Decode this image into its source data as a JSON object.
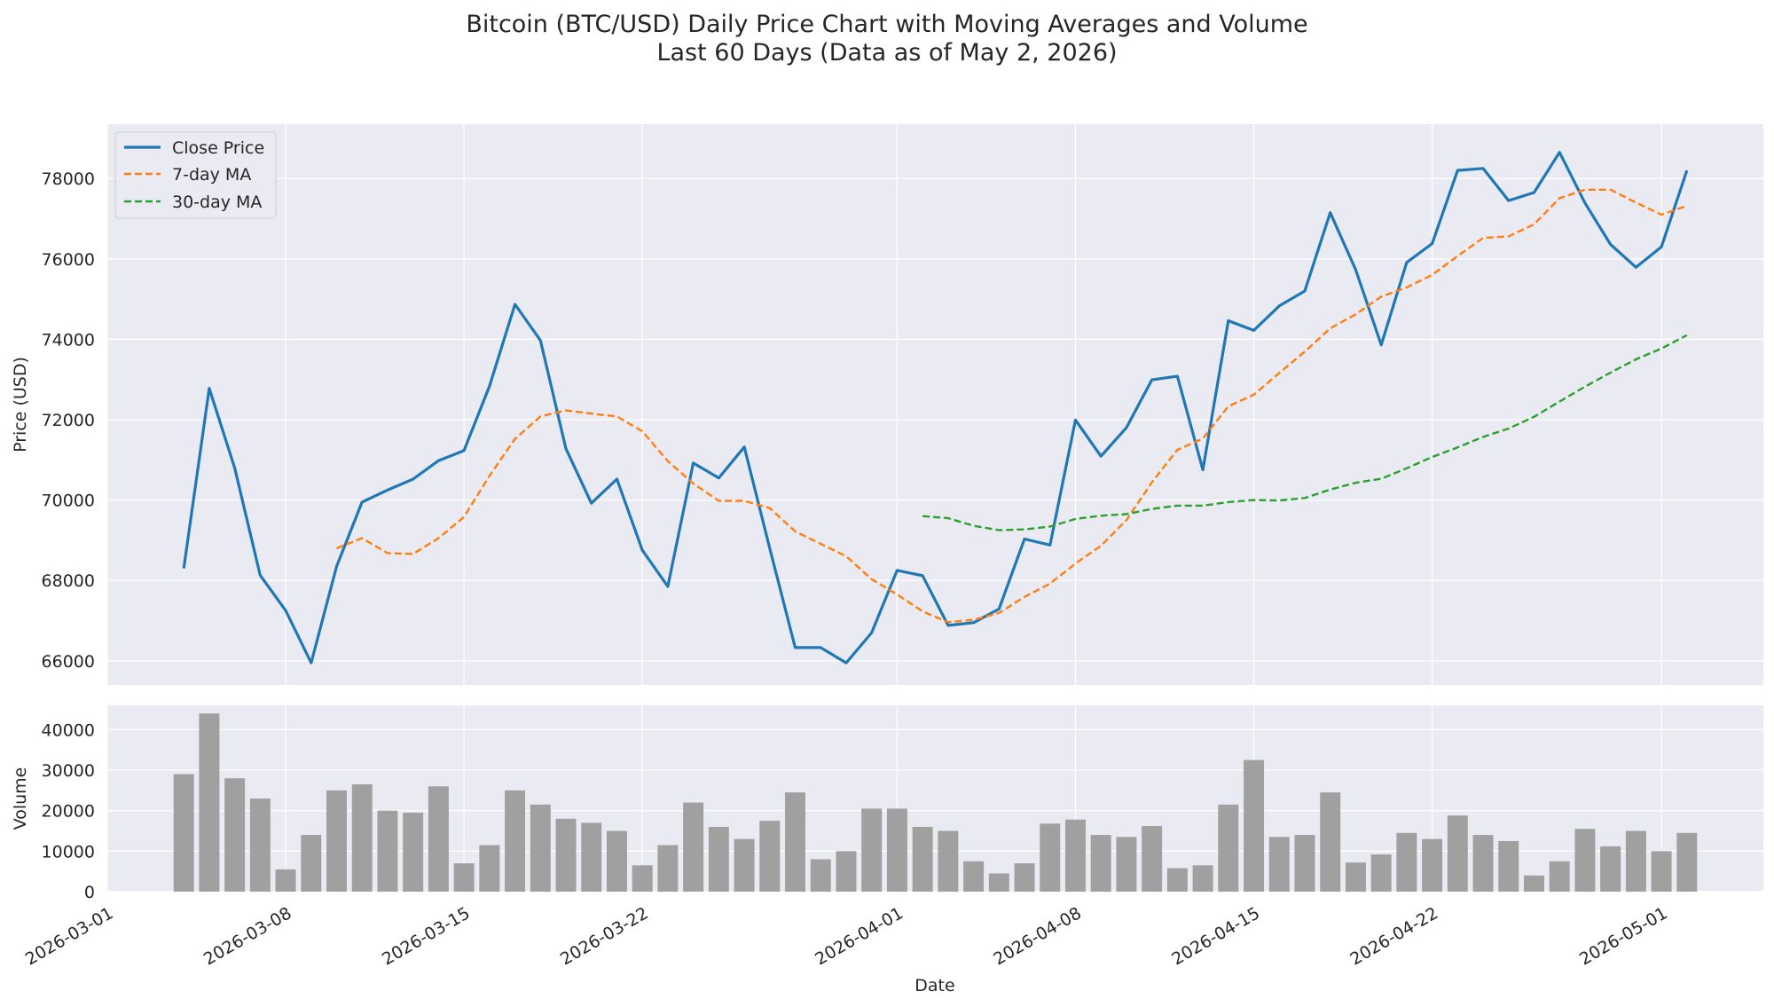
{
  "chart_data": {
    "type": "line",
    "title": "Bitcoin (BTC/USD) Daily Price Chart with Moving Averages and Volume",
    "subtitle": "Last 60 Days (Data as of May 2, 2026)",
    "colors": {
      "close": "#1f77b4",
      "ma7": "#ff7f0e",
      "ma30": "#2ca02c",
      "volume": "#a0a0a0",
      "axes_bg": "#eaeaf2",
      "grid": "#ffffff"
    },
    "grid": true,
    "legend_position": "top-left",
    "dates": [
      "2026-03-04",
      "2026-03-05",
      "2026-03-06",
      "2026-03-07",
      "2026-03-08",
      "2026-03-09",
      "2026-03-10",
      "2026-03-11",
      "2026-03-12",
      "2026-03-13",
      "2026-03-14",
      "2026-03-15",
      "2026-03-16",
      "2026-03-17",
      "2026-03-18",
      "2026-03-19",
      "2026-03-20",
      "2026-03-21",
      "2026-03-22",
      "2026-03-23",
      "2026-03-24",
      "2026-03-25",
      "2026-03-26",
      "2026-03-27",
      "2026-03-28",
      "2026-03-29",
      "2026-03-30",
      "2026-03-31",
      "2026-04-01",
      "2026-04-02",
      "2026-04-03",
      "2026-04-04",
      "2026-04-05",
      "2026-04-06",
      "2026-04-07",
      "2026-04-08",
      "2026-04-09",
      "2026-04-10",
      "2026-04-11",
      "2026-04-12",
      "2026-04-13",
      "2026-04-14",
      "2026-04-15",
      "2026-04-16",
      "2026-04-17",
      "2026-04-18",
      "2026-04-19",
      "2026-04-20",
      "2026-04-21",
      "2026-04-22",
      "2026-04-23",
      "2026-04-24",
      "2026-04-25",
      "2026-04-26",
      "2026-04-27",
      "2026-04-28",
      "2026-04-29",
      "2026-04-30",
      "2026-05-01",
      "2026-05-02"
    ],
    "price_panel": {
      "ylabel": "Price (USD)",
      "ylim": [
        65400,
        79350
      ],
      "yticks": [
        66000,
        68000,
        70000,
        72000,
        74000,
        76000,
        78000
      ],
      "series": [
        {
          "name": "Close Price",
          "style": "solid",
          "values": [
            68300,
            72780,
            70800,
            68130,
            67250,
            65950,
            68350,
            69950,
            70250,
            70520,
            70980,
            71230,
            72830,
            74870,
            73970,
            71280,
            69920,
            70520,
            68750,
            67850,
            70920,
            70550,
            71320,
            68800,
            66330,
            66330,
            65950,
            66700,
            68250,
            68120,
            66880,
            66950,
            67290,
            69030,
            68880,
            71990,
            71090,
            71800,
            72990,
            73080,
            70750,
            74460,
            74220,
            74830,
            75200,
            77150,
            75730,
            73860,
            75910,
            76380,
            78200,
            78250,
            77450,
            77650,
            78650,
            77390,
            76360,
            75790,
            76300,
            78200
          ]
        },
        {
          "name": "7-day MA",
          "style": "dashed",
          "values": [
            null,
            null,
            null,
            null,
            null,
            null,
            68800,
            69050,
            68680,
            68660,
            69050,
            69580,
            70600,
            71520,
            72080,
            72230,
            72150,
            72080,
            71710,
            70970,
            70410,
            69980,
            69980,
            69800,
            69220,
            68910,
            68600,
            68030,
            67650,
            67230,
            66960,
            67020,
            67190,
            67590,
            67920,
            68420,
            68860,
            69500,
            70440,
            71250,
            71530,
            72330,
            72620,
            73160,
            73690,
            74270,
            74620,
            75060,
            75290,
            75600,
            76070,
            76520,
            76560,
            76860,
            77510,
            77720,
            77720,
            77400,
            77100,
            77320
          ]
        },
        {
          "name": "30-day MA",
          "style": "dashed",
          "values": [
            null,
            null,
            null,
            null,
            null,
            null,
            null,
            null,
            null,
            null,
            null,
            null,
            null,
            null,
            null,
            null,
            null,
            null,
            null,
            null,
            null,
            null,
            null,
            null,
            null,
            null,
            null,
            null,
            null,
            69600,
            69550,
            69360,
            69250,
            69270,
            69340,
            69530,
            69610,
            69650,
            69780,
            69860,
            69860,
            69950,
            70000,
            69990,
            70050,
            70260,
            70430,
            70530,
            70790,
            71070,
            71310,
            71570,
            71780,
            72070,
            72450,
            72820,
            73170,
            73500,
            73770,
            74100
          ]
        }
      ]
    },
    "volume_panel": {
      "ylabel": "Volume",
      "ylim": [
        0,
        46000
      ],
      "yticks": [
        0,
        10000,
        20000,
        30000,
        40000
      ],
      "values": [
        29000,
        44000,
        28000,
        23000,
        5500,
        14000,
        25000,
        26500,
        20000,
        19500,
        26000,
        7000,
        11500,
        25000,
        21500,
        18000,
        17000,
        15000,
        6500,
        11500,
        22000,
        16000,
        13000,
        17500,
        24500,
        8000,
        10000,
        20500,
        20500,
        16000,
        15000,
        7500,
        4500,
        7000,
        16800,
        17800,
        14000,
        13500,
        16200,
        5800,
        6500,
        21500,
        32500,
        13500,
        14000,
        24500,
        7200,
        9200,
        14500,
        13000,
        18800,
        14000,
        12500,
        4000,
        7500,
        15500,
        11200,
        15000,
        10000,
        14500
      ]
    },
    "xaxis": {
      "xlabel": "Date",
      "tick_dates": [
        "2026-03-01",
        "2026-03-08",
        "2026-03-15",
        "2026-03-22",
        "2026-04-01",
        "2026-04-08",
        "2026-04-15",
        "2026-04-22",
        "2026-05-01"
      ],
      "range": [
        "2026-03-01",
        "2026-05-05"
      ]
    }
  }
}
